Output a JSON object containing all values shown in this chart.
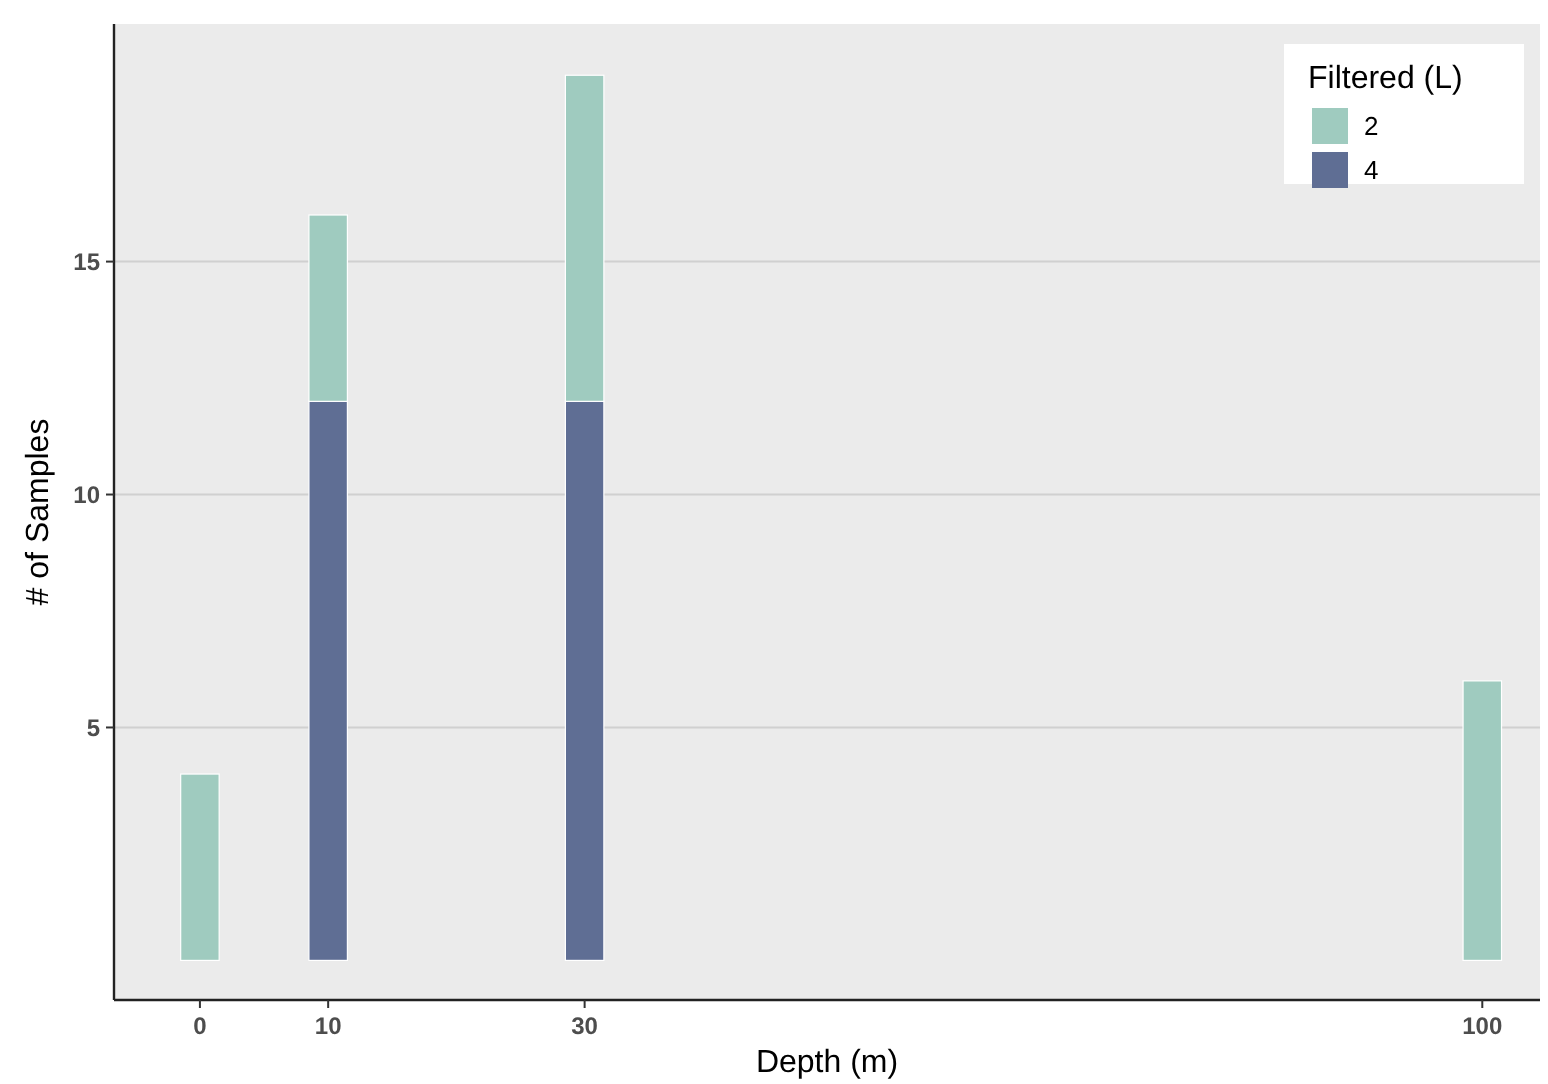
{
  "chart_data": {
    "type": "bar",
    "stacked": true,
    "xlabel": "Depth (m)",
    "ylabel": "# of Samples",
    "legend_title": "Filtered (L)",
    "legend": "top right",
    "grid": "y",
    "x": [
      0,
      10,
      30,
      100
    ],
    "xlim": [
      -6.7,
      104.5
    ],
    "xticks": [
      0,
      10,
      30,
      100
    ],
    "ylim": [
      -0.85,
      20.1
    ],
    "yticks": [
      5,
      10,
      15
    ],
    "series": [
      {
        "name": "4",
        "color": "#5f6e94",
        "values": [
          null,
          12,
          12,
          null
        ]
      },
      {
        "name": "2",
        "color": "#9fcbbf",
        "values": [
          4,
          4,
          7,
          6
        ]
      }
    ]
  }
}
